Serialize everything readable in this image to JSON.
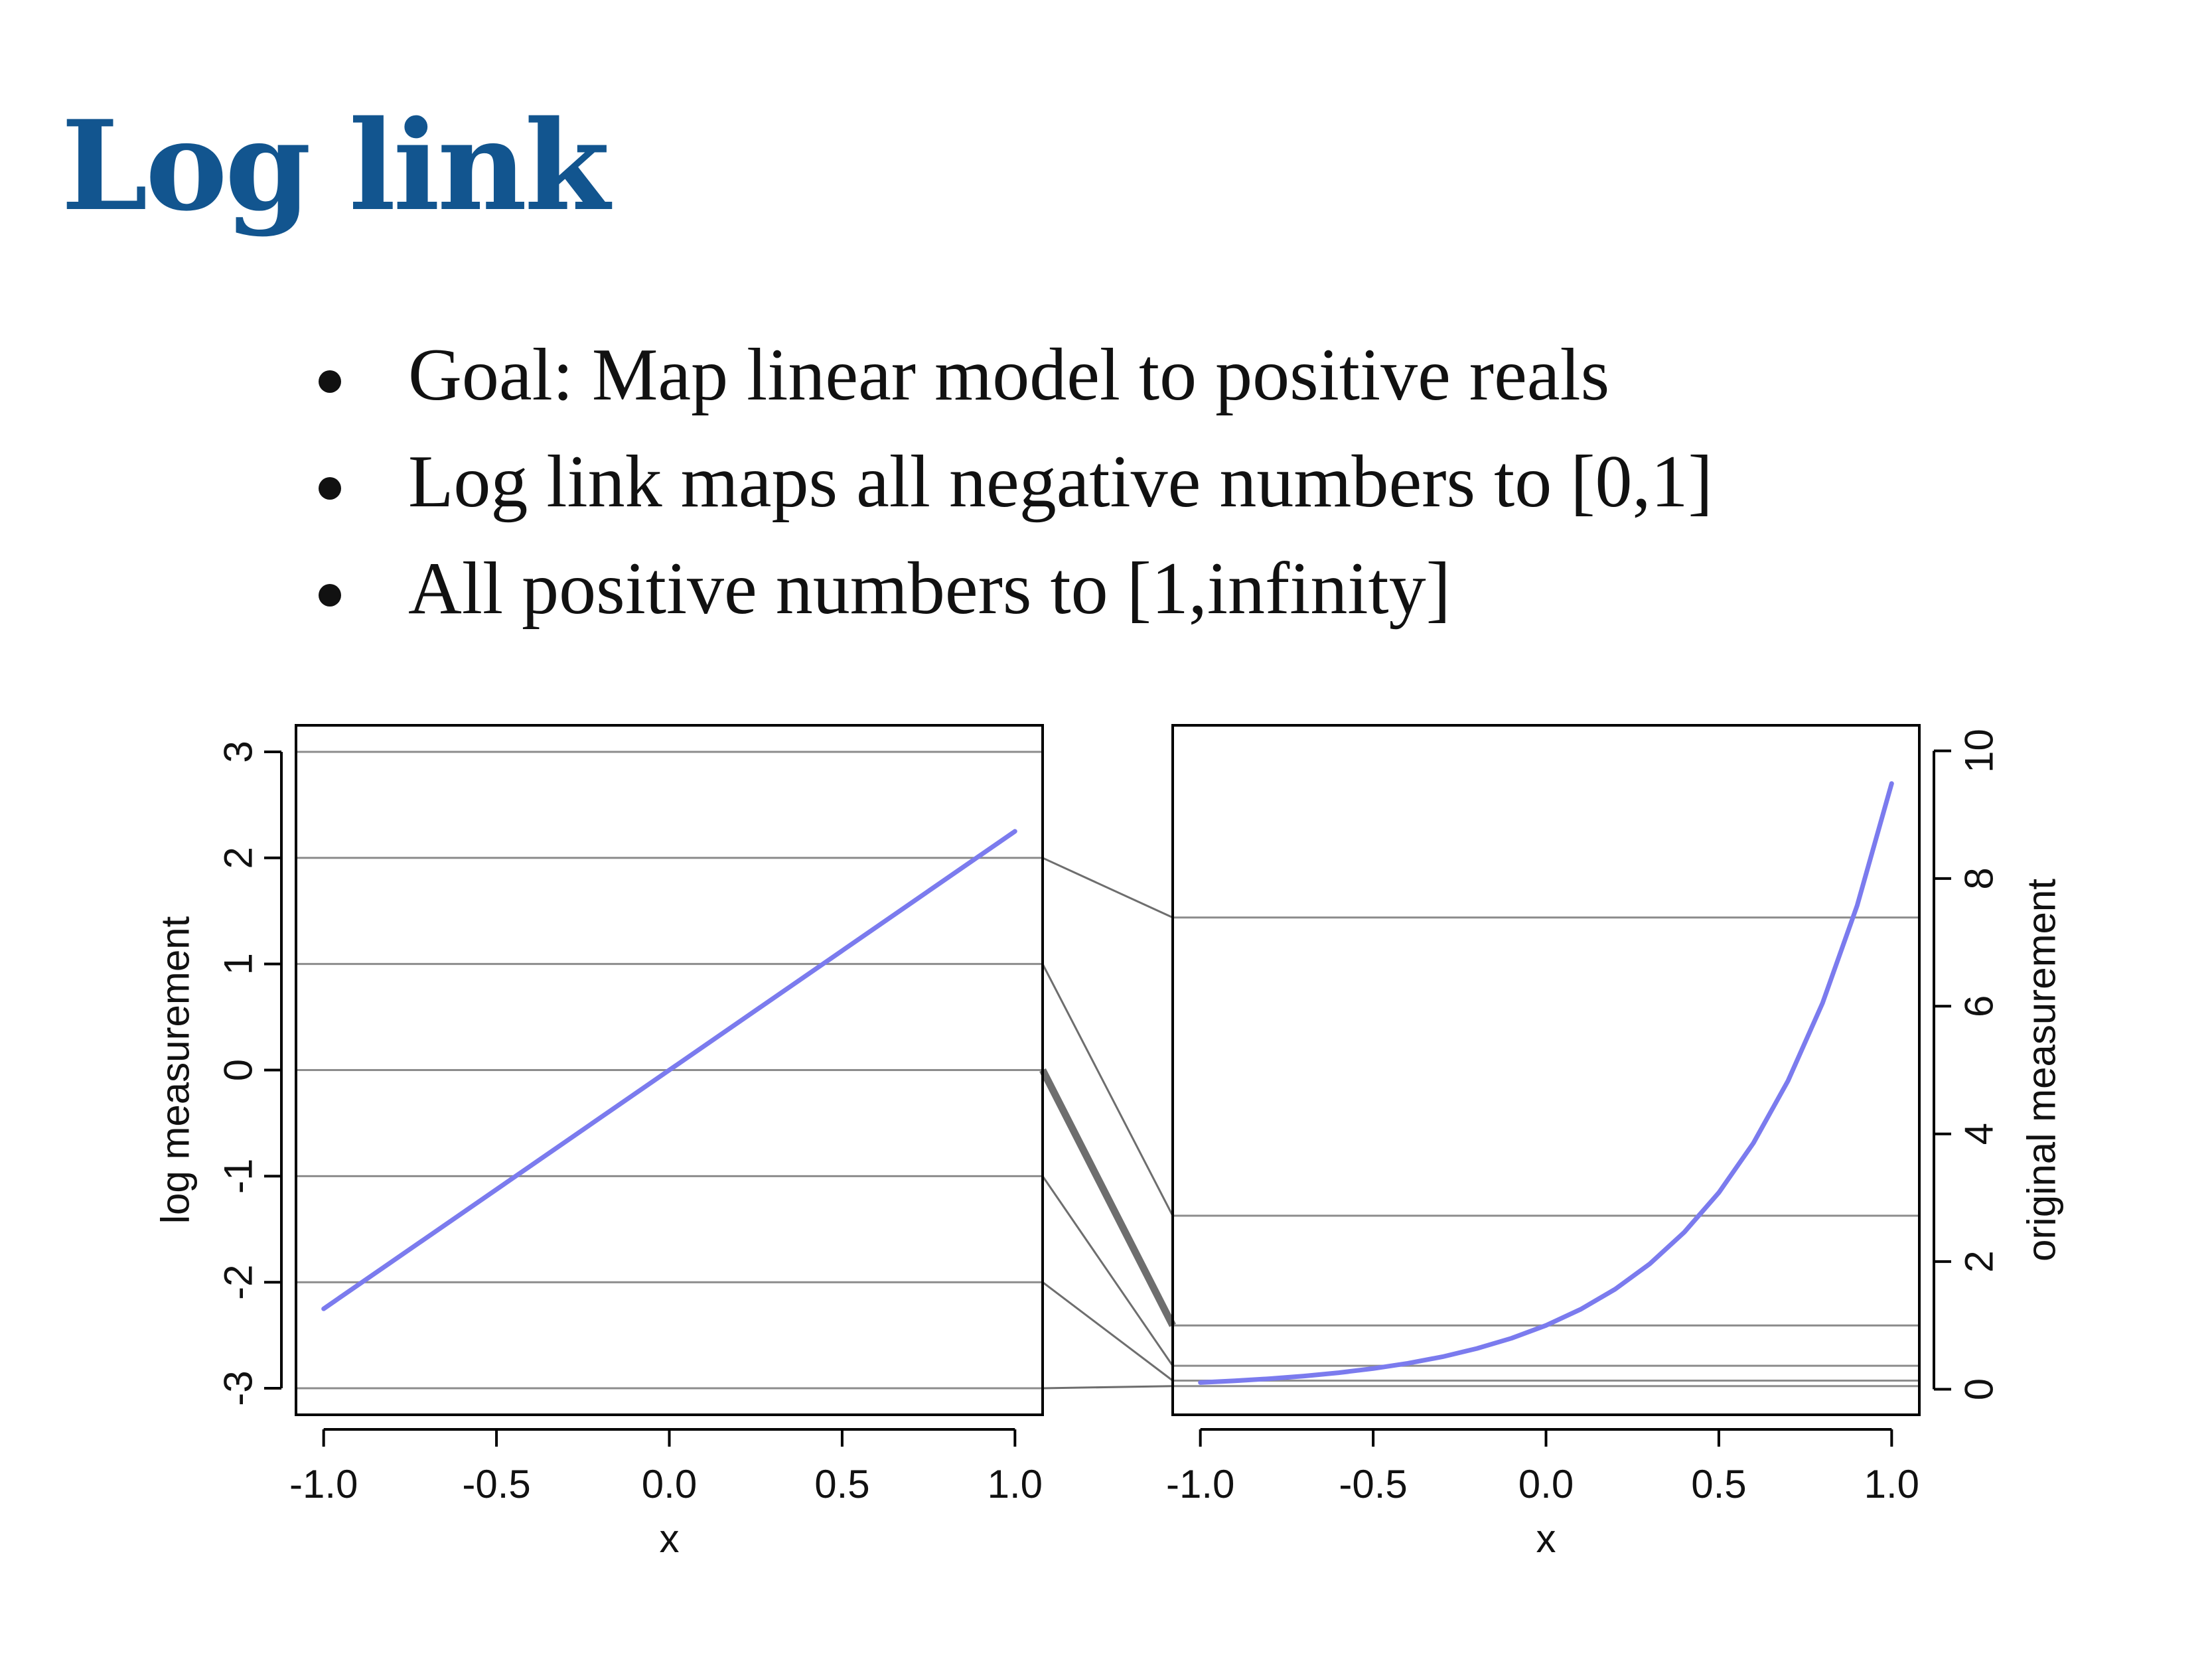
{
  "slide": {
    "title": "Log link",
    "bullets": [
      "Goal: Map linear model to positive reals",
      "Log link maps all negative numbers to [0,1]",
      "All positive numbers to [1,infinity]"
    ]
  },
  "colors": {
    "title": "#12558f",
    "curve": "#7b7bee",
    "grid": "#8c8c8c",
    "connector": "#6e6e6e"
  },
  "chart_data": [
    {
      "type": "line",
      "panel": "left",
      "title": "",
      "xlabel": "x",
      "ylabel": "log measurement",
      "xlim": [
        -1.08,
        1.08
      ],
      "ylim": [
        -3.25,
        3.25
      ],
      "xticks": [
        -1.0,
        -0.5,
        0.0,
        0.5,
        1.0
      ],
      "xtick_labels": [
        "-1.0",
        "-0.5",
        "0.0",
        "0.5",
        "1.0"
      ],
      "yticks": [
        -3,
        -2,
        -1,
        0,
        1,
        2,
        3
      ],
      "ytick_labels": [
        "-3",
        "-2",
        "-1",
        "0",
        "1",
        "2",
        "3"
      ],
      "gridlines_y": [
        -3,
        -2,
        -1,
        0,
        1,
        2,
        3
      ],
      "series": [
        {
          "x": [
            -1.0,
            1.0
          ],
          "y": [
            -2.25,
            2.25
          ]
        }
      ]
    },
    {
      "type": "line",
      "panel": "right",
      "title": "",
      "xlabel": "x",
      "ylabel": "original measurement",
      "y_axis_side": "right",
      "xlim": [
        -1.08,
        1.08
      ],
      "ylim": [
        -0.4,
        10.4
      ],
      "xticks": [
        -1.0,
        -0.5,
        0.0,
        0.5,
        1.0
      ],
      "xtick_labels": [
        "-1.0",
        "-0.5",
        "0.0",
        "0.5",
        "1.0"
      ],
      "yticks": [
        0,
        2,
        4,
        6,
        8,
        10
      ],
      "ytick_labels": [
        "0",
        "2",
        "4",
        "6",
        "8",
        "10"
      ],
      "gridlines_y": [
        0.0498,
        0.1353,
        0.3679,
        1.0,
        2.7183,
        7.3891
      ],
      "series": [
        {
          "x": [
            -1.0,
            -0.9,
            -0.8,
            -0.7,
            -0.6,
            -0.5,
            -0.4,
            -0.3,
            -0.2,
            -0.1,
            0.0,
            0.1,
            0.2,
            0.3,
            0.4,
            0.5,
            0.6,
            0.7,
            0.8,
            0.9,
            1.0
          ],
          "y": [
            0.105,
            0.132,
            0.165,
            0.207,
            0.259,
            0.325,
            0.407,
            0.509,
            0.638,
            0.799,
            1.0,
            1.252,
            1.568,
            1.964,
            2.46,
            3.08,
            3.857,
            4.831,
            6.05,
            7.576,
            9.488
          ]
        }
      ]
    }
  ]
}
